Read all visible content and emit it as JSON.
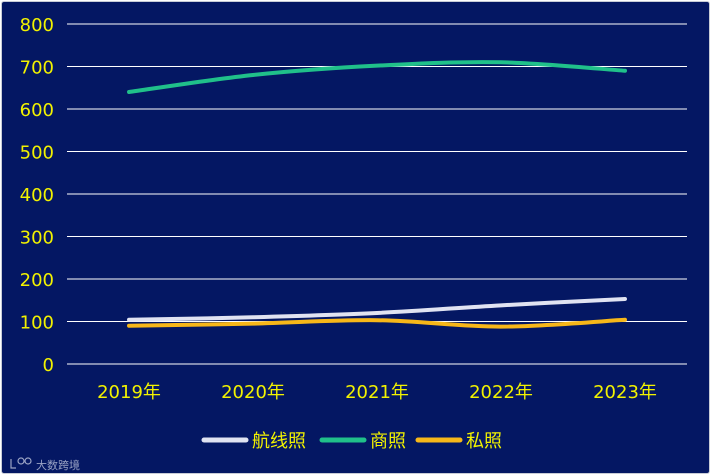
{
  "chart_data": {
    "type": "line",
    "title": "",
    "xlabel": "",
    "ylabel": "",
    "categories": [
      "2019年",
      "2020年",
      "2021年",
      "2022年",
      "2023年"
    ],
    "ylim": [
      0,
      800
    ],
    "yticks": [
      0,
      100,
      200,
      300,
      400,
      500,
      600,
      700,
      800
    ],
    "grid": true,
    "legend_position": "bottom",
    "series": [
      {
        "name": "航线照",
        "color": "#e0e3f2",
        "values": [
          104,
          110,
          120,
          138,
          153
        ]
      },
      {
        "name": "商照",
        "color": "#20c08a",
        "values": [
          640,
          680,
          702,
          710,
          690
        ]
      },
      {
        "name": "私照",
        "color": "#f7b719",
        "values": [
          90,
          95,
          103,
          88,
          104
        ]
      }
    ]
  },
  "watermark": {
    "text": "大数跨境",
    "icon": "brand-logo-icon"
  }
}
